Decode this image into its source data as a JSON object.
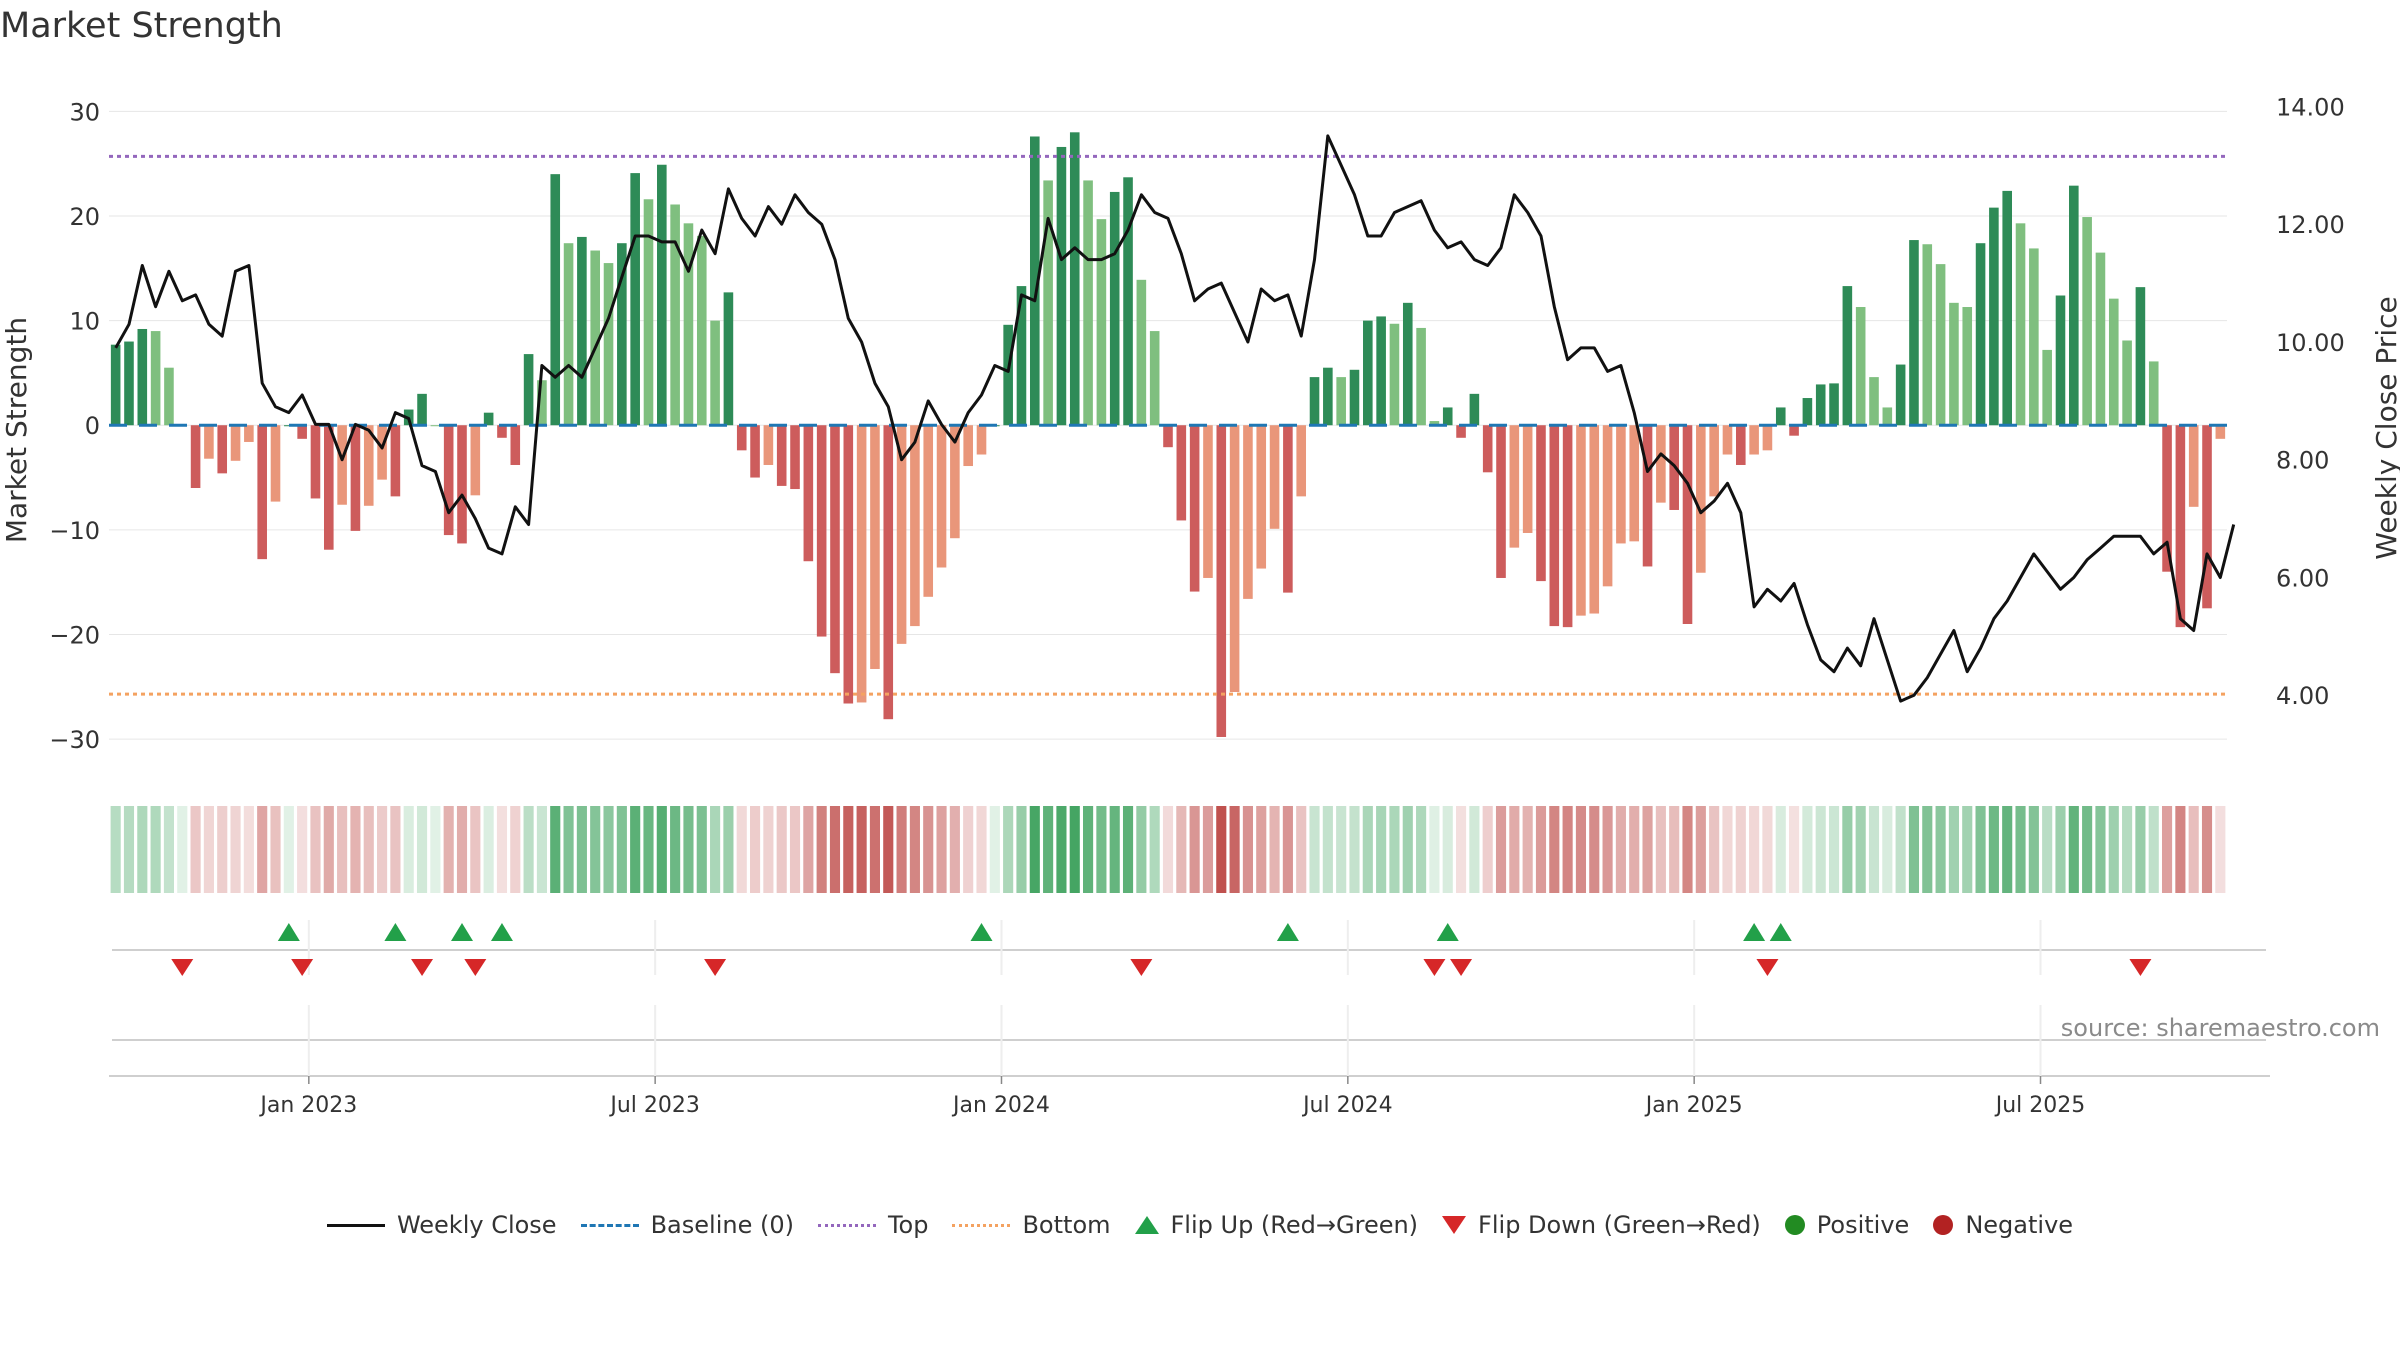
{
  "title": "Market Strength",
  "source": "source: sharemaestro.com",
  "chart_data": {
    "type": "bar",
    "title": "Market Strength",
    "ylabel_left": "Market Strength",
    "ylabel_right": "Weekly Close Price",
    "ylim_left": [
      -32,
      33
    ],
    "ylim_right": [
      2.9,
      14.45
    ],
    "yticks_left": [
      30,
      20,
      10,
      0,
      -10,
      -20,
      -30
    ],
    "yticks_left_labels": [
      "30",
      "20",
      "10",
      "0",
      "−10",
      "−20",
      "−30"
    ],
    "yticks_right": [
      14,
      12,
      10,
      8,
      6,
      4
    ],
    "yticks_right_labels": [
      "14.00",
      "12.00",
      "10.00",
      "8.00",
      "6.00",
      "4.00"
    ],
    "x_tick_labels": [
      "Jan 2023",
      "Jul 2023",
      "Jan 2024",
      "Jul 2024",
      "Jan 2025",
      "Jul 2025"
    ],
    "x_tick_weeks": [
      14.5,
      40.5,
      66.5,
      92.5,
      118.5,
      144.5
    ],
    "top_level": 25.7,
    "bottom_level": -25.7,
    "strength": [
      7.7,
      8,
      9.2,
      9,
      5.5,
      0,
      -6,
      -3.2,
      -4.6,
      -3.4,
      -1.6,
      -12.8,
      -7.3,
      0,
      -1.3,
      -7,
      -11.9,
      -7.6,
      -10.1,
      -7.7,
      -5.2,
      -6.8,
      1.5,
      3,
      0,
      -10.5,
      -11.3,
      -6.7,
      1.2,
      -1.2,
      -3.8,
      6.8,
      4.3,
      24,
      17.4,
      18,
      16.7,
      15.5,
      17.4,
      24.1,
      21.6,
      24.9,
      21.1,
      19.3,
      18.1,
      10,
      12.7,
      -2.4,
      -5,
      -3.8,
      -5.8,
      -6.1,
      -13,
      -20.2,
      -23.7,
      -26.6,
      -26.5,
      -23.3,
      -28.1,
      -20.9,
      -19.2,
      -16.4,
      -13.6,
      -10.8,
      -3.9,
      -2.8,
      0,
      9.6,
      13.3,
      27.6,
      23.4,
      26.6,
      28,
      23.4,
      19.7,
      22.3,
      23.7,
      13.9,
      9,
      -2.1,
      -9.1,
      -15.9,
      -14.6,
      -29.8,
      -25.5,
      -16.6,
      -13.7,
      -9.9,
      -16,
      -6.8,
      4.6,
      5.5,
      4.6,
      5.3,
      10,
      10.4,
      9.7,
      11.7,
      9.3,
      0.4,
      1.7,
      -1.2,
      3,
      -4.5,
      -14.6,
      -11.7,
      -10.3,
      -14.9,
      -19.2,
      -19.3,
      -18.2,
      -18,
      -15.4,
      -11.3,
      -11.1,
      -13.5,
      -7.4,
      -8.1,
      -19,
      -14.1,
      -6.8,
      -2.8,
      -3.8,
      -2.8,
      -2.4,
      1.7,
      -1,
      2.6,
      3.9,
      4,
      13.3,
      11.3,
      4.6,
      1.7,
      5.8,
      17.7,
      17.3,
      15.4,
      11.7,
      11.3,
      17.4,
      20.8,
      22.4,
      19.3,
      16.9,
      7.2,
      12.4,
      22.9,
      19.9,
      16.5,
      12.1,
      8.1,
      13.2,
      6.1,
      -14,
      -19.3,
      -7.8,
      -17.5,
      -1.3
    ],
    "weekly_close": [
      9.9,
      10.3,
      11.3,
      10.6,
      11.2,
      10.7,
      10.8,
      10.3,
      10.1,
      11.2,
      11.3,
      9.3,
      8.9,
      8.8,
      9.1,
      8.6,
      8.6,
      8.0,
      8.6,
      8.5,
      8.2,
      8.8,
      8.7,
      7.9,
      7.8,
      7.1,
      7.4,
      7.0,
      6.5,
      6.4,
      7.2,
      6.9,
      9.6,
      9.4,
      9.6,
      9.4,
      9.9,
      10.4,
      11.1,
      11.8,
      11.8,
      11.7,
      11.7,
      11.2,
      11.9,
      11.5,
      12.6,
      12.1,
      11.8,
      12.3,
      12.0,
      12.5,
      12.2,
      12.0,
      11.4,
      10.4,
      10.0,
      9.3,
      8.9,
      8.0,
      8.3,
      9.0,
      8.6,
      8.3,
      8.8,
      9.1,
      9.6,
      9.5,
      10.8,
      10.7,
      12.1,
      11.4,
      11.6,
      11.4,
      11.4,
      11.5,
      11.9,
      12.5,
      12.2,
      12.1,
      11.5,
      10.7,
      10.9,
      11.0,
      10.5,
      10.0,
      10.9,
      10.7,
      10.8,
      10.1,
      11.4,
      13.5,
      13.0,
      12.5,
      11.8,
      11.8,
      12.2,
      12.3,
      12.4,
      11.9,
      11.6,
      11.7,
      11.4,
      11.3,
      11.6,
      12.5,
      12.2,
      11.8,
      10.6,
      9.7,
      9.9,
      9.9,
      9.5,
      9.6,
      8.8,
      7.8,
      8.1,
      7.9,
      7.6,
      7.1,
      7.3,
      7.6,
      7.1,
      5.5,
      5.8,
      5.6,
      5.9,
      5.2,
      4.6,
      4.4,
      4.8,
      4.5,
      5.3,
      4.6,
      3.9,
      4.0,
      4.3,
      4.7,
      5.1,
      4.4,
      4.8,
      5.3,
      5.6,
      6.0,
      6.4,
      6.1,
      5.8,
      6.0,
      6.3,
      6.5,
      6.7,
      6.7,
      6.7,
      6.4,
      6.6,
      5.3,
      5.1,
      6.4,
      6.0,
      6.9
    ],
    "flip_up_weeks": [
      13,
      21,
      26,
      29,
      65,
      88,
      100,
      123,
      125
    ],
    "flip_down_weeks": [
      5,
      14,
      23,
      27,
      45,
      77,
      99,
      101,
      124,
      152
    ],
    "series": [
      {
        "name": "Weekly Close",
        "style": "line"
      },
      {
        "name": "Baseline (0)",
        "style": "dashed"
      },
      {
        "name": "Top",
        "style": "dotted"
      },
      {
        "name": "Bottom",
        "style": "dotted"
      },
      {
        "name": "Flip Up (Red→Green)",
        "style": "marker"
      },
      {
        "name": "Flip Down (Green→Red)",
        "style": "marker"
      },
      {
        "name": "Positive",
        "style": "marker"
      },
      {
        "name": "Negative",
        "style": "marker"
      }
    ]
  },
  "legend": {
    "weekly_close": "Weekly Close",
    "baseline": "Baseline (0)",
    "top": "Top",
    "bottom": "Bottom",
    "flip_up": "Flip Up (Red→Green)",
    "flip_down": "Flip Down (Green→Red)",
    "positive": "Positive",
    "negative": "Negative"
  },
  "colors": {
    "pos_dark": "#2e8b57",
    "pos_light": "#7fbf7f",
    "neg_dark": "#cd5c5c",
    "neg_light": "#e9967a",
    "top_line": "#9467bd",
    "bottom_line": "#f4a261",
    "baseline": "#1f77b4",
    "close_line": "#111111",
    "flip_up": "#22a049",
    "flip_down": "#d62728"
  }
}
